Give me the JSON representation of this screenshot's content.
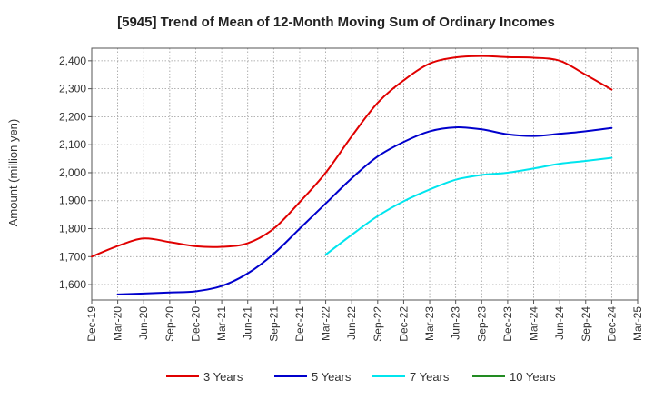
{
  "chart_data": {
    "type": "line",
    "title": "[5945]  Trend of Mean of 12-Month Moving Sum of Ordinary Incomes",
    "xlabel": "",
    "ylabel": "Amount (million yen)",
    "ylim": [
      1545,
      2445
    ],
    "yticks": [
      1600,
      1700,
      1800,
      1900,
      2000,
      2100,
      2200,
      2300,
      2400
    ],
    "ytick_labels": [
      "1,600",
      "1,700",
      "1,800",
      "1,900",
      "2,000",
      "2,100",
      "2,200",
      "2,300",
      "2,400"
    ],
    "xticks": [
      "Dec-19",
      "Mar-20",
      "Jun-20",
      "Sep-20",
      "Dec-20",
      "Mar-21",
      "Jun-21",
      "Sep-21",
      "Dec-21",
      "Mar-22",
      "Jun-22",
      "Sep-22",
      "Dec-22",
      "Mar-23",
      "Jun-23",
      "Sep-23",
      "Dec-23",
      "Mar-24",
      "Jun-24",
      "Sep-24",
      "Dec-24",
      "Mar-25"
    ],
    "grid": true,
    "legend_position": "bottom",
    "series": [
      {
        "name": "3 Years",
        "color": "#e00000",
        "start_index": 0,
        "values": [
          1700,
          1738,
          1765,
          1752,
          1737,
          1735,
          1748,
          1800,
          1895,
          2000,
          2130,
          2250,
          2330,
          2390,
          2412,
          2417,
          2413,
          2411,
          2400,
          2350,
          2297
        ]
      },
      {
        "name": "5 Years",
        "color": "#0000cc",
        "start_index": 1,
        "values": [
          1565,
          1568,
          1572,
          1576,
          1595,
          1640,
          1710,
          1800,
          1890,
          1980,
          2058,
          2110,
          2148,
          2162,
          2155,
          2137,
          2131,
          2139,
          2148,
          2160
        ]
      },
      {
        "name": "7 Years",
        "color": "#00e5ee",
        "start_index": 9,
        "values": [
          1707,
          1778,
          1845,
          1898,
          1940,
          1975,
          1992,
          2000,
          2015,
          2032,
          2042,
          2053
        ]
      },
      {
        "name": "10 Years",
        "color": "#228b22",
        "start_index": 21,
        "values": []
      }
    ]
  }
}
